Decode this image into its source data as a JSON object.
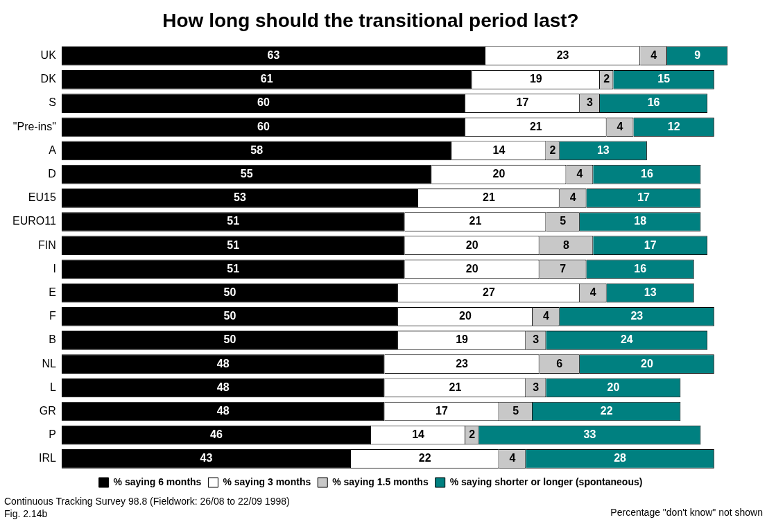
{
  "chart_data": {
    "type": "bar",
    "orientation": "horizontal",
    "stacked": true,
    "data_labels": true,
    "legend": "bottom",
    "grid": false,
    "title": "How long should the transitional period last?",
    "categories": [
      "UK",
      "DK",
      "S",
      "\"Pre-ins\"",
      "A",
      "D",
      "EU15",
      "EURO11",
      "FIN",
      "I",
      "E",
      "F",
      "B",
      "NL",
      "L",
      "GR",
      "P",
      "IRL"
    ],
    "series": [
      {
        "name": "% saying 6 months",
        "color": "#000000",
        "values": [
          63,
          61,
          60,
          60,
          58,
          55,
          53,
          51,
          51,
          51,
          50,
          50,
          50,
          48,
          48,
          48,
          46,
          43
        ]
      },
      {
        "name": "% saying 3 months",
        "color": "#ffffff",
        "values": [
          23,
          19,
          17,
          21,
          14,
          20,
          21,
          21,
          20,
          20,
          27,
          20,
          19,
          23,
          21,
          17,
          14,
          22
        ]
      },
      {
        "name": "% saying 1.5 months",
        "color": "#c8c8c8",
        "values": [
          4,
          2,
          3,
          4,
          2,
          4,
          4,
          5,
          8,
          7,
          4,
          4,
          3,
          6,
          3,
          5,
          2,
          4
        ]
      },
      {
        "name": "% saying shorter or longer (spontaneous)",
        "color": "#008080",
        "values": [
          9,
          15,
          16,
          12,
          13,
          16,
          17,
          18,
          17,
          16,
          13,
          23,
          24,
          20,
          20,
          22,
          33,
          28
        ]
      }
    ],
    "annotations": [
      "Continuous Tracking Survey 98.8 (Fieldwork: 26/08 to 22/09 1998)",
      "Fig. 2.14b",
      "Percentage \"don't know\" not shown"
    ]
  }
}
